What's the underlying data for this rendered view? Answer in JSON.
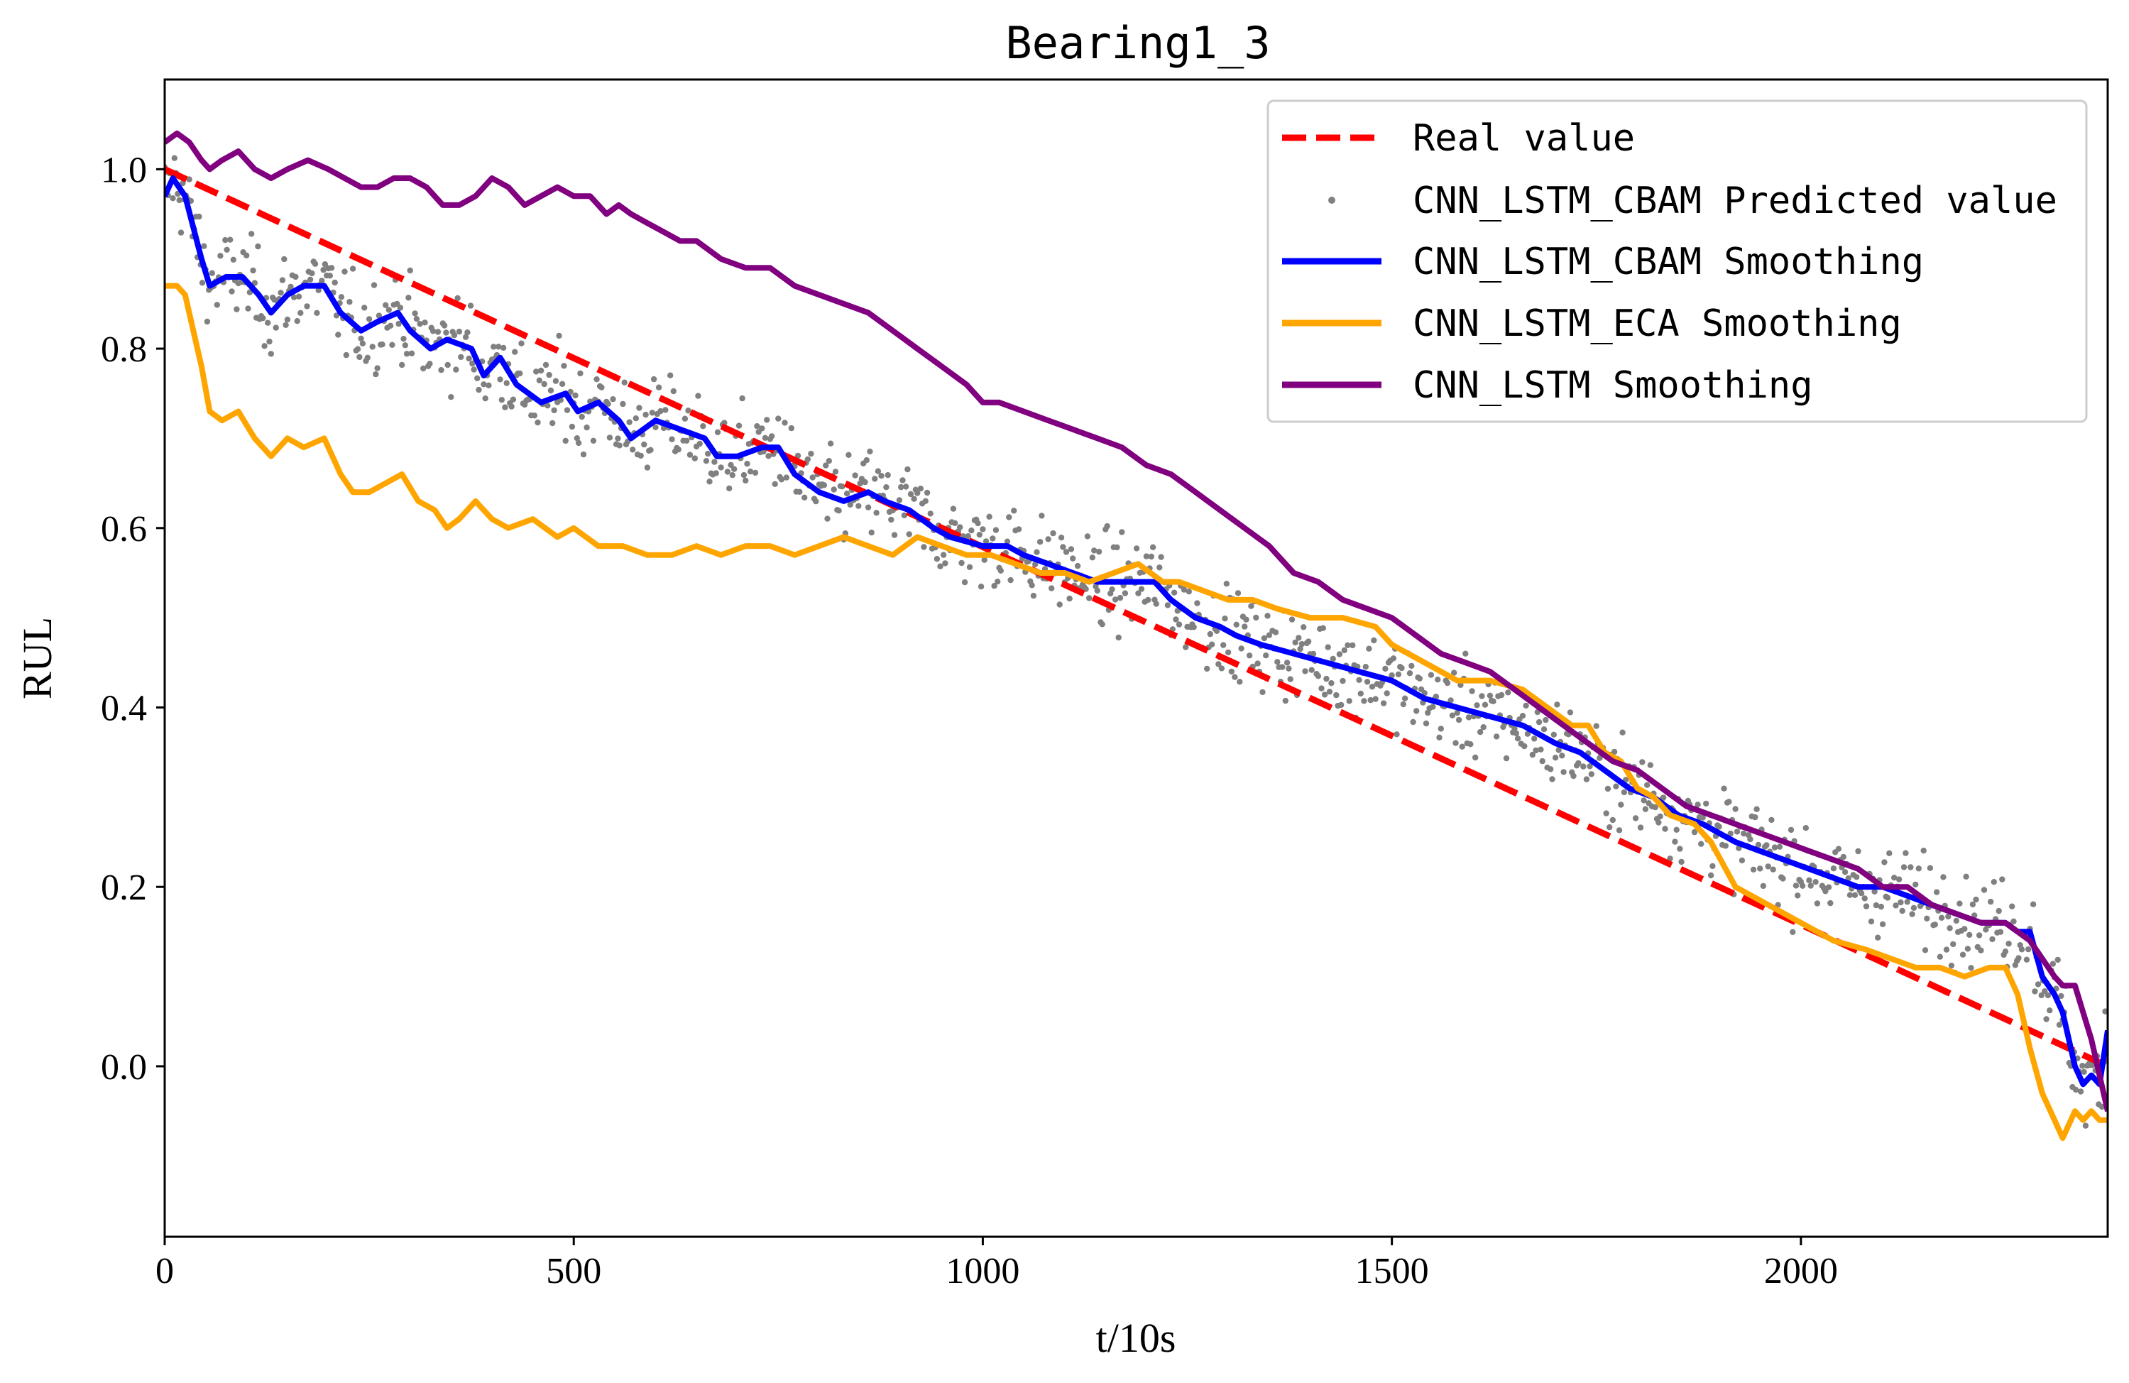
{
  "chart_data": {
    "type": "line",
    "title": "Bearing1_3",
    "xlabel": "t/10s",
    "ylabel": "RUL",
    "xlim": [
      0,
      2375
    ],
    "ylim": [
      -0.19,
      1.1
    ],
    "xticks": [
      0,
      500,
      1000,
      1500,
      2000
    ],
    "xtick_labels": [
      "0",
      "500",
      "1000",
      "1500",
      "2000"
    ],
    "yticks": [
      0.0,
      0.2,
      0.4,
      0.6,
      0.8,
      1.0
    ],
    "ytick_labels": [
      "0.0",
      "0.2",
      "0.4",
      "0.6",
      "0.8",
      "1.0"
    ],
    "grid": false,
    "legend_position": "top-right",
    "series": [
      {
        "name": "Real value",
        "style": "dashed",
        "color": "#ff0000",
        "x": [
          0,
          2375
        ],
        "y": [
          1.0,
          0.0
        ]
      },
      {
        "name": "CNN_LSTM_CBAM Predicted value",
        "style": "scatter",
        "color": "#808080",
        "point_count": 2375,
        "trend": "noisy values scattered around the CNN_LSTM_CBAM Smoothing curve (spread about ±0.08), with extremes from about -0.13 to 1.02"
      },
      {
        "name": "CNN_LSTM_CBAM Smoothing",
        "style": "solid",
        "color": "#0000ff",
        "x": [
          0,
          10,
          25,
          45,
          55,
          75,
          95,
          115,
          130,
          150,
          170,
          195,
          215,
          240,
          260,
          285,
          300,
          325,
          345,
          375,
          390,
          410,
          430,
          460,
          490,
          505,
          530,
          555,
          570,
          600,
          630,
          660,
          675,
          700,
          730,
          750,
          770,
          800,
          830,
          860,
          880,
          910,
          940,
          960,
          1000,
          1030,
          1050,
          1080,
          1110,
          1140,
          1180,
          1210,
          1230,
          1260,
          1290,
          1310,
          1340,
          1380,
          1420,
          1460,
          1500,
          1540,
          1580,
          1620,
          1660,
          1700,
          1730,
          1760,
          1790,
          1820,
          1850,
          1880,
          1920,
          1950,
          1980,
          2010,
          2040,
          2070,
          2100,
          2130,
          2160,
          2190,
          2220,
          2250,
          2265,
          2280,
          2295,
          2310,
          2320,
          2335,
          2345,
          2355,
          2365,
          2375
        ],
        "y": [
          0.97,
          0.99,
          0.97,
          0.9,
          0.87,
          0.88,
          0.88,
          0.86,
          0.84,
          0.86,
          0.87,
          0.87,
          0.84,
          0.82,
          0.83,
          0.84,
          0.82,
          0.8,
          0.81,
          0.8,
          0.77,
          0.79,
          0.76,
          0.74,
          0.75,
          0.73,
          0.74,
          0.72,
          0.7,
          0.72,
          0.71,
          0.7,
          0.68,
          0.68,
          0.69,
          0.69,
          0.66,
          0.64,
          0.63,
          0.64,
          0.63,
          0.62,
          0.6,
          0.59,
          0.58,
          0.58,
          0.57,
          0.56,
          0.55,
          0.54,
          0.54,
          0.54,
          0.52,
          0.5,
          0.49,
          0.48,
          0.47,
          0.46,
          0.45,
          0.44,
          0.43,
          0.41,
          0.4,
          0.39,
          0.38,
          0.36,
          0.35,
          0.33,
          0.31,
          0.3,
          0.28,
          0.27,
          0.25,
          0.24,
          0.23,
          0.22,
          0.21,
          0.2,
          0.2,
          0.19,
          0.18,
          0.17,
          0.16,
          0.16,
          0.15,
          0.15,
          0.1,
          0.08,
          0.06,
          0.0,
          -0.02,
          -0.01,
          -0.02,
          0.04
        ]
      },
      {
        "name": "CNN_LSTM_ECA Smoothing",
        "style": "solid",
        "color": "#ffa500",
        "x": [
          0,
          15,
          25,
          35,
          45,
          55,
          70,
          90,
          110,
          130,
          150,
          170,
          195,
          215,
          230,
          250,
          270,
          290,
          310,
          330,
          345,
          360,
          380,
          400,
          420,
          450,
          480,
          500,
          530,
          560,
          590,
          620,
          650,
          680,
          710,
          740,
          770,
          800,
          830,
          860,
          890,
          920,
          950,
          980,
          1010,
          1040,
          1070,
          1100,
          1130,
          1160,
          1190,
          1220,
          1240,
          1270,
          1300,
          1330,
          1360,
          1400,
          1440,
          1480,
          1500,
          1540,
          1580,
          1620,
          1660,
          1690,
          1720,
          1740,
          1760,
          1780,
          1800,
          1820,
          1840,
          1870,
          1890,
          1920,
          1960,
          2000,
          2040,
          2080,
          2110,
          2140,
          2170,
          2200,
          2230,
          2250,
          2265,
          2280,
          2295,
          2310,
          2320,
          2335,
          2345,
          2355,
          2365,
          2375
        ],
        "y": [
          0.87,
          0.87,
          0.86,
          0.82,
          0.78,
          0.73,
          0.72,
          0.73,
          0.7,
          0.68,
          0.7,
          0.69,
          0.7,
          0.66,
          0.64,
          0.64,
          0.65,
          0.66,
          0.63,
          0.62,
          0.6,
          0.61,
          0.63,
          0.61,
          0.6,
          0.61,
          0.59,
          0.6,
          0.58,
          0.58,
          0.57,
          0.57,
          0.58,
          0.57,
          0.58,
          0.58,
          0.57,
          0.58,
          0.59,
          0.58,
          0.57,
          0.59,
          0.58,
          0.57,
          0.57,
          0.56,
          0.55,
          0.55,
          0.54,
          0.55,
          0.56,
          0.54,
          0.54,
          0.53,
          0.52,
          0.52,
          0.51,
          0.5,
          0.5,
          0.49,
          0.47,
          0.45,
          0.43,
          0.43,
          0.42,
          0.4,
          0.38,
          0.38,
          0.35,
          0.34,
          0.31,
          0.3,
          0.28,
          0.27,
          0.25,
          0.2,
          0.18,
          0.16,
          0.14,
          0.13,
          0.12,
          0.11,
          0.11,
          0.1,
          0.11,
          0.11,
          0.08,
          0.02,
          -0.03,
          -0.06,
          -0.08,
          -0.05,
          -0.06,
          -0.05,
          -0.06,
          -0.06
        ]
      },
      {
        "name": "CNN_LSTM Smoothing",
        "style": "solid",
        "color": "#800080",
        "x": [
          0,
          15,
          30,
          45,
          55,
          70,
          90,
          110,
          130,
          150,
          175,
          200,
          220,
          240,
          260,
          280,
          300,
          320,
          340,
          360,
          380,
          400,
          420,
          440,
          460,
          480,
          500,
          520,
          540,
          555,
          570,
          590,
          610,
          630,
          650,
          680,
          710,
          740,
          770,
          800,
          830,
          860,
          890,
          920,
          950,
          980,
          1000,
          1020,
          1050,
          1080,
          1110,
          1140,
          1170,
          1200,
          1230,
          1260,
          1290,
          1320,
          1350,
          1380,
          1410,
          1440,
          1470,
          1500,
          1530,
          1560,
          1590,
          1620,
          1650,
          1680,
          1710,
          1740,
          1770,
          1800,
          1830,
          1860,
          1890,
          1920,
          1950,
          1980,
          2010,
          2040,
          2070,
          2100,
          2130,
          2160,
          2190,
          2220,
          2250,
          2265,
          2280,
          2295,
          2310,
          2320,
          2335,
          2345,
          2355,
          2365,
          2375
        ],
        "y": [
          1.03,
          1.04,
          1.03,
          1.01,
          1.0,
          1.01,
          1.02,
          1.0,
          0.99,
          1.0,
          1.01,
          1.0,
          0.99,
          0.98,
          0.98,
          0.99,
          0.99,
          0.98,
          0.96,
          0.96,
          0.97,
          0.99,
          0.98,
          0.96,
          0.97,
          0.98,
          0.97,
          0.97,
          0.95,
          0.96,
          0.95,
          0.94,
          0.93,
          0.92,
          0.92,
          0.9,
          0.89,
          0.89,
          0.87,
          0.86,
          0.85,
          0.84,
          0.82,
          0.8,
          0.78,
          0.76,
          0.74,
          0.74,
          0.73,
          0.72,
          0.71,
          0.7,
          0.69,
          0.67,
          0.66,
          0.64,
          0.62,
          0.6,
          0.58,
          0.55,
          0.54,
          0.52,
          0.51,
          0.5,
          0.48,
          0.46,
          0.45,
          0.44,
          0.42,
          0.4,
          0.38,
          0.36,
          0.34,
          0.33,
          0.31,
          0.29,
          0.28,
          0.27,
          0.26,
          0.25,
          0.24,
          0.23,
          0.22,
          0.2,
          0.2,
          0.18,
          0.17,
          0.16,
          0.16,
          0.15,
          0.14,
          0.12,
          0.1,
          0.09,
          0.09,
          0.06,
          0.03,
          -0.01,
          -0.05
        ]
      }
    ]
  }
}
